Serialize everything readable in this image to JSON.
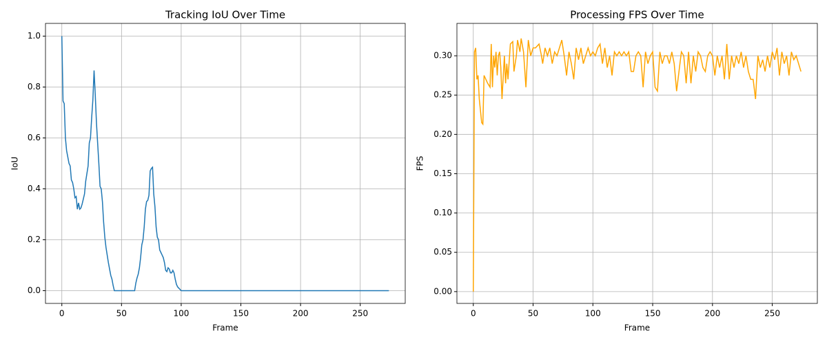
{
  "chart_data": [
    {
      "type": "line",
      "title": "Tracking IoU Over Time",
      "x_label": "Frame",
      "y_label": "IoU",
      "x": [
        0,
        1,
        2,
        3,
        4,
        5,
        6,
        7,
        8,
        9,
        10,
        11,
        12,
        13,
        14,
        15,
        16,
        17,
        18,
        19,
        20,
        21,
        22,
        23,
        24,
        25,
        26,
        27,
        28,
        29,
        30,
        31,
        32,
        33,
        34,
        35,
        36,
        37,
        38,
        39,
        40,
        41,
        42,
        43,
        44,
        61,
        62,
        63,
        64,
        65,
        66,
        67,
        68,
        69,
        70,
        71,
        72,
        73,
        74,
        75,
        76,
        77,
        78,
        79,
        80,
        81,
        82,
        83,
        84,
        85,
        86,
        87,
        88,
        89,
        90,
        91,
        92,
        93,
        94,
        95,
        96,
        97,
        98,
        99,
        100,
        274
      ],
      "series": [
        {
          "name": "IoU",
          "color": "#1f77b4",
          "values": [
            1.0,
            0.745,
            0.735,
            0.6,
            0.55,
            0.525,
            0.5,
            0.49,
            0.435,
            0.425,
            0.4,
            0.365,
            0.37,
            0.32,
            0.345,
            0.32,
            0.325,
            0.34,
            0.36,
            0.38,
            0.43,
            0.46,
            0.49,
            0.58,
            0.6,
            0.68,
            0.75,
            0.865,
            0.77,
            0.66,
            0.58,
            0.5,
            0.41,
            0.4,
            0.35,
            0.27,
            0.21,
            0.17,
            0.14,
            0.11,
            0.085,
            0.06,
            0.045,
            0.02,
            0,
            0,
            0.03,
            0.05,
            0.065,
            0.09,
            0.13,
            0.18,
            0.2,
            0.25,
            0.32,
            0.35,
            0.355,
            0.375,
            0.47,
            0.48,
            0.485,
            0.38,
            0.33,
            0.25,
            0.21,
            0.2,
            0.16,
            0.15,
            0.14,
            0.13,
            0.11,
            0.08,
            0.075,
            0.09,
            0.085,
            0.07,
            0.07,
            0.08,
            0.07,
            0.045,
            0.025,
            0.015,
            0.01,
            0.005,
            0,
            0
          ]
        }
      ],
      "xlim": [
        -13.7,
        287.7
      ],
      "xticks": [
        0,
        50,
        100,
        150,
        200,
        250
      ],
      "ylim": [
        -0.05,
        1.05
      ],
      "yticks": [
        {
          "value": 0,
          "label": "0.0"
        },
        0.2,
        0.4,
        0.6,
        0.8,
        {
          "value": 1,
          "label": "1.0"
        }
      ],
      "grid": true
    },
    {
      "type": "line",
      "title": "Processing FPS Over Time",
      "x_label": "Frame",
      "y_label": "FPS",
      "x": [
        0,
        1,
        2,
        3,
        4,
        5,
        7,
        8,
        9,
        12,
        14,
        15,
        16,
        17,
        18,
        19,
        20,
        21,
        22,
        23,
        24,
        26,
        27,
        28,
        29,
        31,
        33,
        34,
        36,
        37,
        39,
        40,
        42,
        44,
        46,
        48,
        50,
        52,
        55,
        57,
        58,
        60,
        62,
        64,
        66,
        68,
        70,
        72,
        74,
        76,
        78,
        80,
        82,
        84,
        86,
        88,
        90,
        92,
        94,
        96,
        98,
        100,
        102,
        104,
        106,
        108,
        110,
        112,
        114,
        116,
        118,
        120,
        122,
        124,
        126,
        128,
        130,
        132,
        134,
        136,
        138,
        140,
        142,
        144,
        146,
        148,
        150,
        152,
        154,
        156,
        158,
        160,
        162,
        164,
        166,
        168,
        170,
        172,
        174,
        176,
        178,
        180,
        182,
        184,
        186,
        188,
        190,
        192,
        194,
        196,
        198,
        200,
        202,
        204,
        206,
        208,
        210,
        212,
        214,
        216,
        218,
        220,
        222,
        224,
        226,
        228,
        230,
        232,
        234,
        236,
        238,
        240,
        242,
        244,
        246,
        248,
        250,
        252,
        254,
        256,
        258,
        260,
        262,
        264,
        266,
        268,
        270,
        272,
        274
      ],
      "series": [
        {
          "name": "FPS",
          "color": "#ffa500",
          "values": [
            0,
            0.305,
            0.31,
            0.27,
            0.275,
            0.245,
            0.215,
            0.213,
            0.275,
            0.265,
            0.26,
            0.315,
            0.26,
            0.3,
            0.285,
            0.305,
            0.275,
            0.3,
            0.305,
            0.285,
            0.245,
            0.3,
            0.265,
            0.29,
            0.27,
            0.315,
            0.318,
            0.28,
            0.3,
            0.32,
            0.305,
            0.322,
            0.305,
            0.26,
            0.32,
            0.3,
            0.31,
            0.31,
            0.315,
            0.3,
            0.29,
            0.31,
            0.3,
            0.31,
            0.29,
            0.305,
            0.3,
            0.31,
            0.32,
            0.3,
            0.275,
            0.305,
            0.29,
            0.27,
            0.31,
            0.295,
            0.31,
            0.29,
            0.3,
            0.31,
            0.3,
            0.305,
            0.3,
            0.31,
            0.315,
            0.29,
            0.31,
            0.285,
            0.3,
            0.275,
            0.305,
            0.3,
            0.305,
            0.3,
            0.305,
            0.3,
            0.305,
            0.28,
            0.28,
            0.3,
            0.305,
            0.3,
            0.26,
            0.305,
            0.29,
            0.3,
            0.305,
            0.26,
            0.255,
            0.305,
            0.29,
            0.3,
            0.3,
            0.29,
            0.305,
            0.29,
            0.255,
            0.28,
            0.305,
            0.3,
            0.265,
            0.305,
            0.265,
            0.3,
            0.28,
            0.305,
            0.3,
            0.285,
            0.28,
            0.3,
            0.305,
            0.3,
            0.275,
            0.3,
            0.285,
            0.3,
            0.27,
            0.315,
            0.27,
            0.3,
            0.285,
            0.3,
            0.29,
            0.305,
            0.285,
            0.3,
            0.28,
            0.27,
            0.27,
            0.245,
            0.3,
            0.285,
            0.295,
            0.28,
            0.3,
            0.285,
            0.305,
            0.295,
            0.31,
            0.275,
            0.305,
            0.29,
            0.3,
            0.275,
            0.305,
            0.295,
            0.3,
            0.29,
            0.28
          ]
        }
      ],
      "xlim": [
        -13.7,
        287.7
      ],
      "xticks": [
        0,
        50,
        100,
        150,
        200,
        250
      ],
      "ylim": [
        -0.015,
        0.3412
      ],
      "yticks": [
        {
          "value": 0,
          "label": "0.00"
        },
        0.05,
        {
          "value": 0.1,
          "label": "0.10"
        },
        0.15,
        {
          "value": 0.2,
          "label": "0.20"
        },
        0.25,
        {
          "value": 0.3,
          "label": "0.30"
        }
      ],
      "grid": true
    }
  ]
}
